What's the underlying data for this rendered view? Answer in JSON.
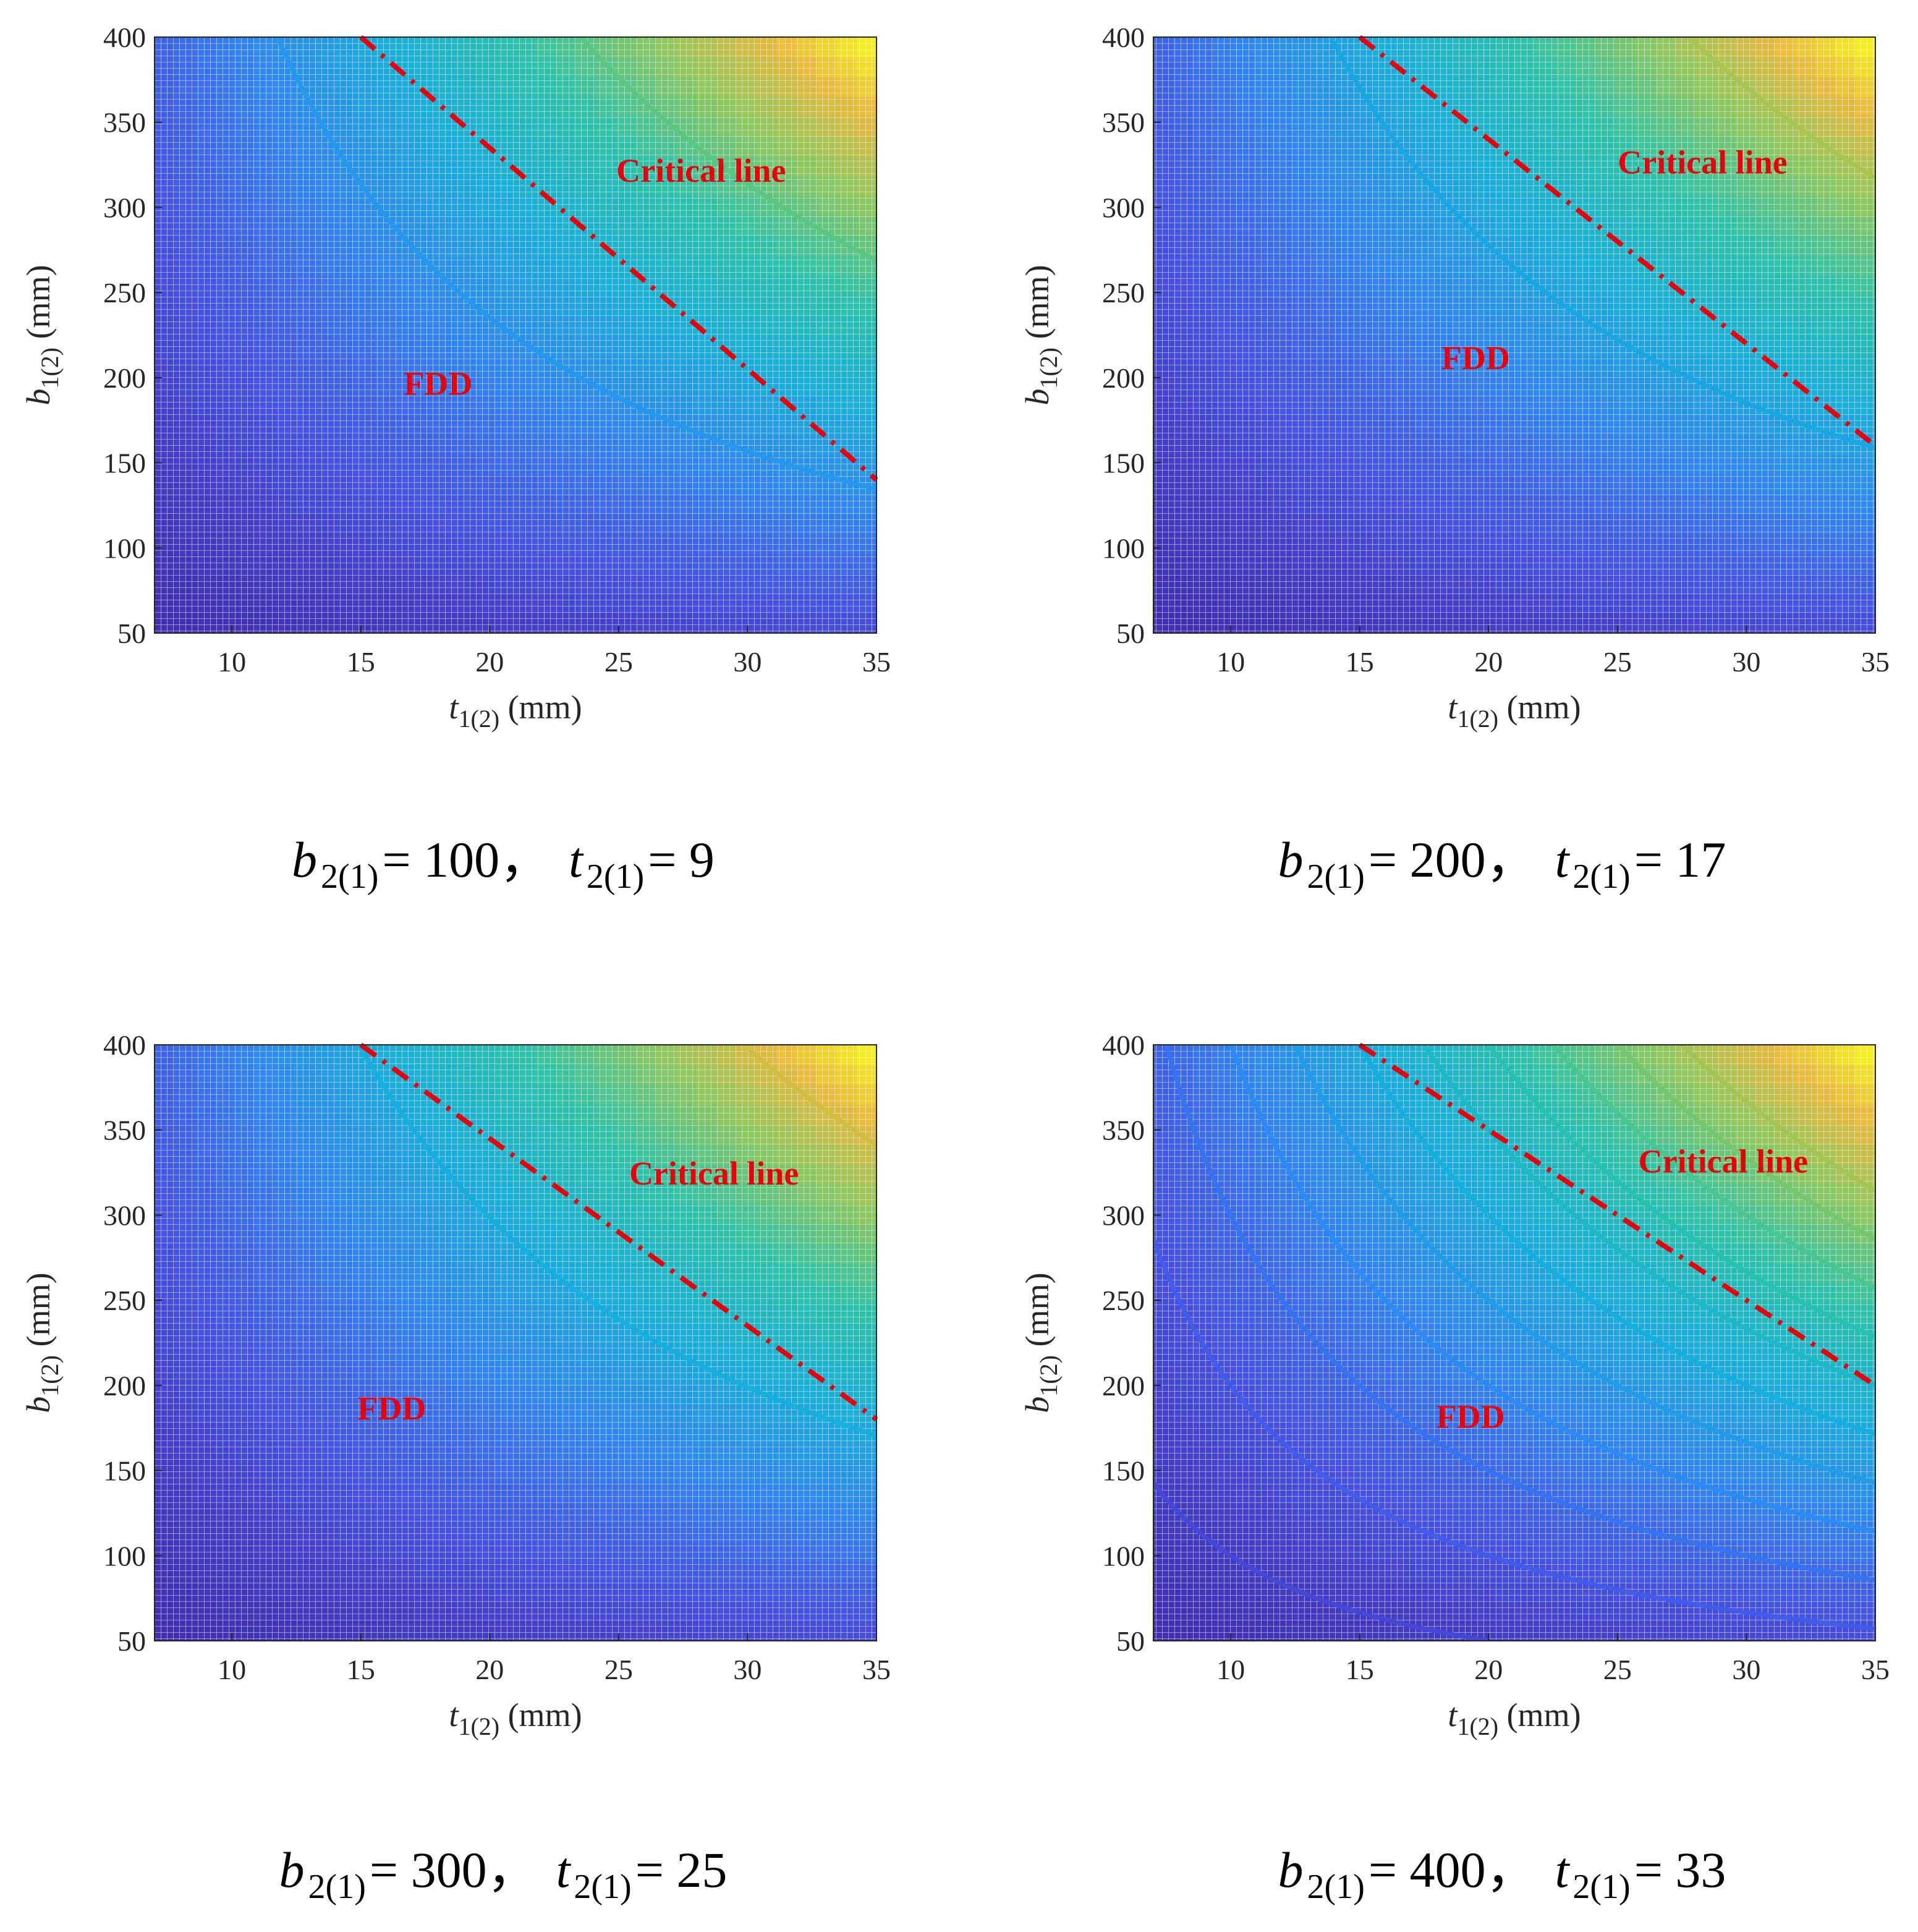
{
  "chart_data": [
    {
      "type": "contour",
      "xlabel_symbol": "t",
      "xlabel_sub": "1(2)",
      "xlabel_unit": " (mm)",
      "ylabel_symbol": "b",
      "ylabel_sub": "1(2)",
      "ylabel_unit": " (mm)",
      "xlim": [
        7,
        35
      ],
      "ylim": [
        50,
        400
      ],
      "xticks": [
        10,
        15,
        20,
        25,
        30,
        35
      ],
      "yticks": [
        50,
        100,
        150,
        200,
        250,
        300,
        350,
        400
      ],
      "field_strength": 0.85,
      "contour_levels": [
        1,
        2,
        3,
        4,
        5,
        6
      ],
      "critical_line": {
        "label": "Critical line",
        "start": [
          15,
          400
        ],
        "end": [
          35,
          140
        ]
      },
      "fdd_label": {
        "text": "FDD",
        "at": [
          18,
          190
        ]
      },
      "critical_label_at": [
        28.2,
        315
      ],
      "caption": {
        "b_sym": "b",
        "b_sub": "2(1)",
        "b_val": "= 100，",
        "t_sym": "t",
        "t_sub": "2(1)",
        "t_val": "= 9"
      }
    },
    {
      "type": "contour",
      "xlabel_symbol": "t",
      "xlabel_sub": "1(2)",
      "xlabel_unit": " (mm)",
      "ylabel_symbol": "b",
      "ylabel_sub": "1(2)",
      "ylabel_unit": " (mm)",
      "xlim": [
        7,
        35
      ],
      "ylim": [
        50,
        400
      ],
      "xticks": [
        10,
        15,
        20,
        25,
        30,
        35
      ],
      "yticks": [
        50,
        100,
        150,
        200,
        250,
        300,
        350,
        400
      ],
      "field_strength": 0.72,
      "contour_levels": [
        1,
        2,
        3,
        4,
        5,
        6
      ],
      "critical_line": {
        "label": "Critical line",
        "start": [
          15,
          400
        ],
        "end": [
          35,
          160
        ]
      },
      "fdd_label": {
        "text": "FDD",
        "at": [
          19.5,
          205
        ]
      },
      "critical_label_at": [
        28.3,
        320
      ],
      "caption": {
        "b_sym": "b",
        "b_sub": "2(1)",
        "b_val": "= 200，",
        "t_sym": "t",
        "t_sub": "2(1)",
        "t_val": "= 17"
      }
    },
    {
      "type": "contour",
      "xlabel_symbol": "t",
      "xlabel_sub": "1(2)",
      "xlabel_unit": " (mm)",
      "ylabel_symbol": "b",
      "ylabel_sub": "1(2)",
      "ylabel_unit": " (mm)",
      "xlim": [
        7,
        35
      ],
      "ylim": [
        50,
        400
      ],
      "xticks": [
        10,
        15,
        20,
        25,
        30,
        35
      ],
      "yticks": [
        50,
        100,
        150,
        200,
        250,
        300,
        350,
        400
      ],
      "field_strength": 0.67,
      "contour_levels": [
        1,
        2,
        3,
        4,
        5,
        6
      ],
      "critical_line": {
        "label": "Critical line",
        "start": [
          15,
          400
        ],
        "end": [
          35,
          180
        ]
      },
      "fdd_label": {
        "text": "FDD",
        "at": [
          16.2,
          180
        ]
      },
      "critical_label_at": [
        28.7,
        318
      ],
      "caption": {
        "b_sym": "b",
        "b_sub": "2(1)",
        "b_val": "= 300，",
        "t_sym": "t",
        "t_sub": "2(1)",
        "t_val": "= 25"
      }
    },
    {
      "type": "contour",
      "xlabel_symbol": "t",
      "xlabel_sub": "1(2)",
      "xlabel_unit": " (mm)",
      "ylabel_symbol": "b",
      "ylabel_sub": "1(2)",
      "ylabel_unit": " (mm)",
      "xlim": [
        7,
        35
      ],
      "ylim": [
        50,
        400
      ],
      "xticks": [
        10,
        15,
        20,
        25,
        30,
        35
      ],
      "yticks": [
        50,
        100,
        150,
        200,
        250,
        300,
        350,
        400
      ],
      "field_strength": 1.0,
      "contour_levels": [
        0.25,
        0.5,
        0.75,
        1,
        1.25,
        1.5,
        1.75,
        2,
        2.25,
        2.5,
        2.75
      ],
      "critical_line": {
        "label": "Critical line",
        "start": [
          15,
          400
        ],
        "end": [
          35,
          200
        ]
      },
      "fdd_label": {
        "text": "FDD",
        "at": [
          19.3,
          175
        ]
      },
      "critical_label_at": [
        29.1,
        325
      ],
      "caption": {
        "b_sym": "b",
        "b_sub": "2(1)",
        "b_val": "= 400，",
        "t_sym": "t",
        "t_sub": "2(1)",
        "t_val": "= 33"
      }
    }
  ],
  "colors": {
    "critical_line": "#e8000b",
    "annotation": "#e8000b",
    "grid_line": "#ffffff"
  }
}
